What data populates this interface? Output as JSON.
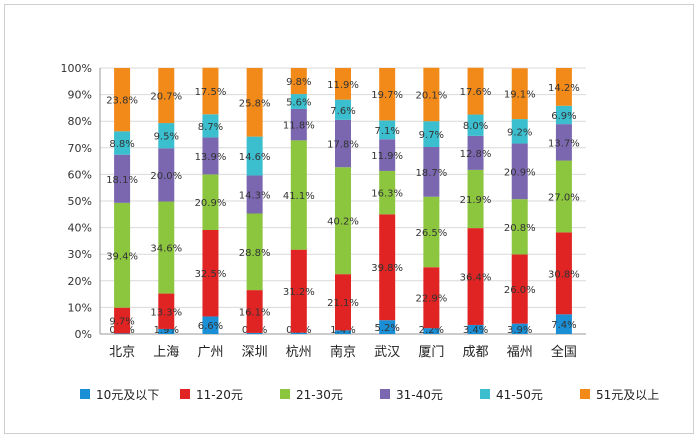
{
  "chart_data": {
    "type": "bar",
    "stacked": true,
    "categories": [
      "北京",
      "上海",
      "广州",
      "深圳",
      "杭州",
      "南京",
      "武汉",
      "厦门",
      "成都",
      "福州",
      "全国"
    ],
    "ylim": [
      0,
      100
    ],
    "yticks": [
      "0%",
      "10%",
      "20%",
      "30%",
      "40%",
      "50%",
      "60%",
      "70%",
      "80%",
      "90%",
      "100%"
    ],
    "grid": true,
    "legend_position": "bottom",
    "series": [
      {
        "name": "10元及以下",
        "color": "#1a8fd6",
        "values": [
          0.2,
          1.9,
          6.6,
          0.4,
          0.5,
          1.4,
          5.2,
          2.2,
          3.4,
          3.9,
          7.4
        ],
        "labels": [
          "0.2%",
          "1.9%",
          "6.6%",
          "0.4%",
          "0.5%",
          "1.4%",
          "5.2%",
          "2.2%",
          "3.4%",
          "3.9%",
          "7.4%"
        ]
      },
      {
        "name": "11-20元",
        "color": "#e02424",
        "values": [
          9.7,
          13.3,
          32.5,
          16.1,
          31.2,
          21.1,
          39.8,
          22.9,
          36.4,
          26.0,
          30.8
        ],
        "labels": [
          "9.7%",
          "13.3%",
          "32.5%",
          "16.1%",
          "31.2%",
          "21.1%",
          "39.8%",
          "22.9%",
          "36.4%",
          "26.0%",
          "30.8%"
        ]
      },
      {
        "name": "21-30元",
        "color": "#8cc63f",
        "values": [
          39.4,
          34.6,
          20.9,
          28.8,
          41.1,
          40.2,
          16.3,
          26.5,
          21.9,
          20.8,
          27.0
        ],
        "labels": [
          "39.4%",
          "34.6%",
          "20.9%",
          "28.8%",
          "41.1%",
          "40.2%",
          "16.3%",
          "26.5%",
          "21.9%",
          "20.8%",
          "27.0%"
        ]
      },
      {
        "name": "31-40元",
        "color": "#7a67b0",
        "values": [
          18.1,
          20.0,
          13.9,
          14.3,
          11.8,
          17.8,
          11.9,
          18.7,
          12.8,
          20.9,
          13.7
        ],
        "labels": [
          "18.1%",
          "20.0%",
          "13.9%",
          "14.3%",
          "11.8%",
          "17.8%",
          "11.9%",
          "18.7%",
          "12.8%",
          "20.9%",
          "13.7%"
        ]
      },
      {
        "name": "41-50元",
        "color": "#3bbfcf",
        "values": [
          8.8,
          9.5,
          8.7,
          14.6,
          5.6,
          7.6,
          7.1,
          9.7,
          8.0,
          9.2,
          6.9
        ],
        "labels": [
          "8.8%",
          "9.5%",
          "8.7%",
          "14.6%",
          "5.6%",
          "7.6%",
          "7.1%",
          "9.7%",
          "8.0%",
          "9.2%",
          "6.9%"
        ]
      },
      {
        "name": "51元及以上",
        "color": "#f28a1a",
        "values": [
          23.8,
          20.7,
          17.5,
          25.8,
          9.8,
          11.9,
          19.7,
          20.1,
          17.6,
          19.1,
          14.2
        ],
        "labels": [
          "23.8%",
          "20.7%",
          "17.5%",
          "25.8%",
          "9.8%",
          "11.9%",
          "19.7%",
          "20.1%",
          "17.6%",
          "19.1%",
          "14.2%"
        ]
      }
    ]
  }
}
